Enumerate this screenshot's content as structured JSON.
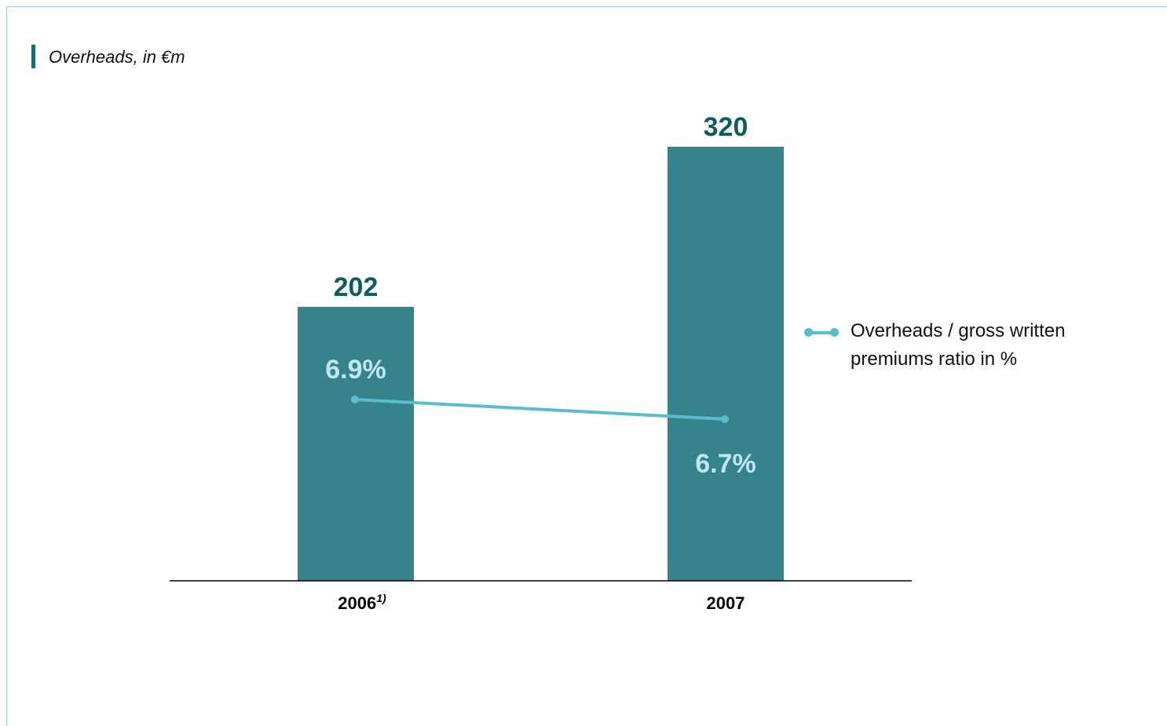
{
  "title": "Overheads, in €m",
  "colors": {
    "bar": "#37838c",
    "value_label": "#0e5d63",
    "ratio_line": "#5bbccc",
    "ratio_label": "#bfe6ee",
    "axis": "#000000",
    "frame": "#9cc7ef"
  },
  "legend": {
    "label": "Overheads / gross written premiums ratio in %"
  },
  "chart_data": {
    "type": "bar",
    "categories": [
      "2006",
      "2007"
    ],
    "category_superscripts": [
      "1)",
      ""
    ],
    "series": [
      {
        "name": "Overheads, in €m",
        "type": "bar",
        "values": [
          202,
          320
        ],
        "labels": [
          "202",
          "320"
        ]
      },
      {
        "name": "Overheads / gross written premiums ratio in %",
        "type": "line",
        "values": [
          6.9,
          6.7
        ],
        "labels": [
          "6.9%",
          "6.7%"
        ]
      }
    ],
    "title": "Overheads, in €m",
    "xlabel": "",
    "ylabel": "",
    "grid": false,
    "legend_position": "right"
  }
}
